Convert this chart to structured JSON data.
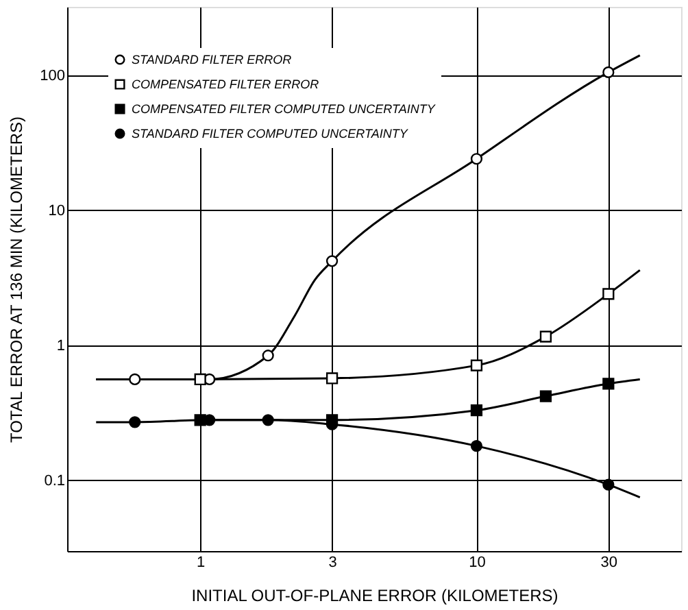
{
  "chart_data": {
    "type": "scatter",
    "xlabel": "INITIAL OUT-OF-PLANE ERROR (KILOMETERS)",
    "ylabel": "TOTAL ERROR AT 136 MIN (KILOMETERS)",
    "log": "xy",
    "xlim": [
      0.33,
      55
    ],
    "ylim": [
      0.03,
      320
    ],
    "xticks": [
      1,
      3,
      10,
      30
    ],
    "yticks": [
      0.1,
      1,
      10,
      100
    ],
    "grid": true,
    "legend": "top left",
    "series": [
      {
        "name": "STANDARD FILTER ERROR",
        "marker": "circle",
        "color": "#ffffff",
        "x": [
          0.58,
          1.08,
          1.76,
          3,
          10,
          30
        ],
        "values": [
          0.56,
          0.56,
          0.84,
          4.2,
          24,
          105
        ]
      },
      {
        "name": "COMPENSATED FILTER ERROR",
        "marker": "square",
        "color": "#ffffff",
        "x": [
          1,
          3,
          10,
          17.8,
          30
        ],
        "values": [
          0.56,
          0.57,
          0.71,
          1.16,
          2.4
        ]
      },
      {
        "name": "COMPENSATED FILTER COMPUTED UNCERTAINTY",
        "marker": "square",
        "color": "#000000",
        "x": [
          1,
          3,
          10,
          17.8,
          30
        ],
        "values": [
          0.28,
          0.28,
          0.33,
          0.42,
          0.52
        ]
      },
      {
        "name": "STANDARD FILTER COMPUTED UNCERTAINTY",
        "marker": "circle",
        "color": "#000000",
        "x": [
          0.58,
          1.08,
          1.76,
          3,
          10,
          30
        ],
        "values": [
          0.27,
          0.28,
          0.28,
          0.26,
          0.18,
          0.093
        ]
      },
      {
        "type": "line",
        "marker": "none",
        "color": "#000000",
        "x": [
          0.42,
          0.58,
          1.08,
          1.76,
          2.2,
          2.6,
          3,
          10,
          30,
          39
        ],
        "values": [
          0.56,
          0.56,
          0.56,
          0.84,
          1.66,
          3.05,
          4.2,
          24,
          105,
          140
        ]
      },
      {
        "type": "line",
        "marker": "none",
        "color": "#000000",
        "x": [
          0.42,
          1,
          3,
          10,
          17.8,
          30,
          39
        ],
        "values": [
          0.56,
          0.56,
          0.57,
          0.71,
          1.16,
          2.4,
          3.6
        ]
      },
      {
        "type": "line",
        "marker": "none",
        "color": "#000000",
        "x": [
          1,
          3,
          10,
          17.8,
          30,
          39
        ],
        "values": [
          0.28,
          0.28,
          0.33,
          0.42,
          0.52,
          0.56
        ]
      },
      {
        "type": "line",
        "marker": "none",
        "color": "#000000",
        "x": [
          0.42,
          0.58,
          1.08,
          1.76,
          3,
          10,
          30,
          39
        ],
        "values": [
          0.27,
          0.27,
          0.28,
          0.28,
          0.26,
          0.18,
          0.093,
          0.075
        ]
      }
    ]
  }
}
